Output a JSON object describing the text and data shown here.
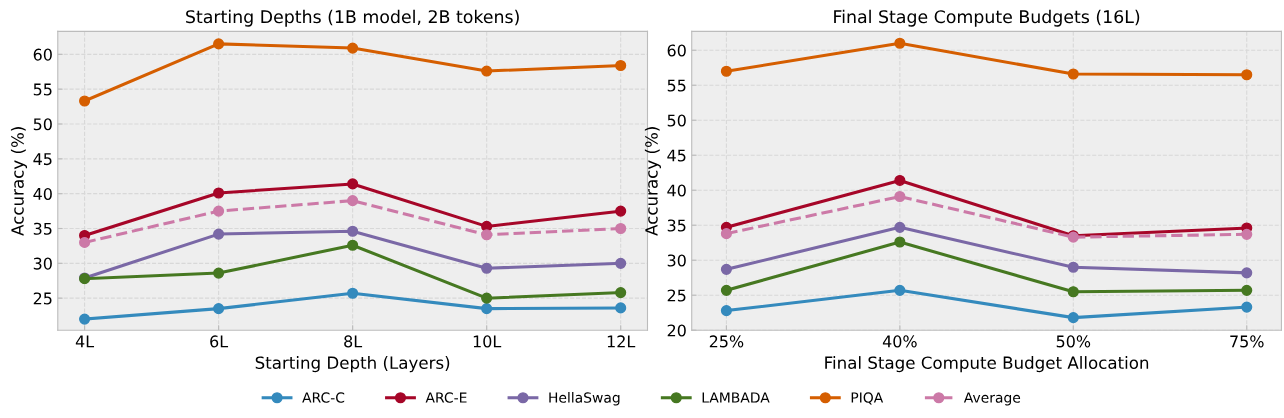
{
  "chart_data": [
    {
      "type": "line",
      "title": "Starting Depths (1B model, 2B tokens)",
      "xlabel": "Starting Depth (Layers)",
      "ylabel": "Accuracy (%)",
      "categories": [
        "4L",
        "6L",
        "8L",
        "10L",
        "12L"
      ],
      "ylim": [
        20.4,
        63.3
      ],
      "yticks": [
        25,
        30,
        35,
        40,
        45,
        50,
        55,
        60
      ],
      "grid": true,
      "legend": "bottom",
      "marker": "circle",
      "series": [
        {
          "name": "ARC-C",
          "color": "#348abd",
          "values": [
            22.0,
            23.5,
            25.7,
            23.5,
            23.6
          ]
        },
        {
          "name": "ARC-E",
          "color": "#a60628",
          "values": [
            34.0,
            40.1,
            41.4,
            35.3,
            37.5
          ]
        },
        {
          "name": "HellaSwag",
          "color": "#7a68a6",
          "values": [
            27.9,
            34.2,
            34.6,
            29.3,
            30.0
          ]
        },
        {
          "name": "LAMBADA",
          "color": "#467821",
          "values": [
            27.8,
            28.6,
            32.6,
            25.0,
            25.8
          ]
        },
        {
          "name": "PIQA",
          "color": "#d55e00",
          "values": [
            53.3,
            61.5,
            60.9,
            57.6,
            58.4
          ]
        },
        {
          "name": "Average",
          "color": "#cc79a7",
          "line_style": "dashed",
          "values": [
            33.0,
            37.5,
            39.0,
            34.1,
            35.0
          ]
        }
      ]
    },
    {
      "type": "line",
      "title": "Final Stage Compute Budgets (16L)",
      "xlabel": "Final Stage Compute Budget Allocation",
      "ylabel": "Accuracy (%)",
      "categories": [
        "25%",
        "40%",
        "50%",
        "75%"
      ],
      "ylim": [
        20,
        62.7
      ],
      "yticks": [
        20,
        25,
        30,
        35,
        40,
        45,
        50,
        55,
        60
      ],
      "grid": true,
      "legend": "bottom",
      "marker": "circle",
      "series": [
        {
          "name": "ARC-C",
          "color": "#348abd",
          "values": [
            22.8,
            25.7,
            21.8,
            23.3
          ]
        },
        {
          "name": "ARC-E",
          "color": "#a60628",
          "values": [
            34.7,
            41.4,
            33.5,
            34.6
          ]
        },
        {
          "name": "HellaSwag",
          "color": "#7a68a6",
          "values": [
            28.7,
            34.7,
            29.0,
            28.2
          ]
        },
        {
          "name": "LAMBADA",
          "color": "#467821",
          "values": [
            25.7,
            32.6,
            25.5,
            25.7
          ]
        },
        {
          "name": "PIQA",
          "color": "#d55e00",
          "values": [
            57.0,
            61.0,
            56.6,
            56.5
          ]
        },
        {
          "name": "Average",
          "color": "#cc79a7",
          "line_style": "dashed",
          "values": [
            33.8,
            39.1,
            33.3,
            33.7
          ]
        }
      ]
    }
  ]
}
